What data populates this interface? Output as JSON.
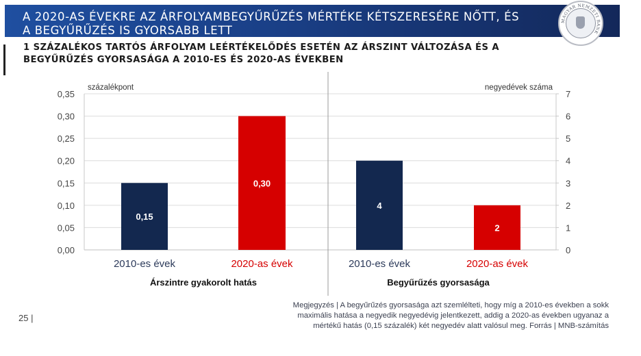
{
  "header": {
    "title_line1": "A 2020-AS ÉVEKRE AZ ÁRFOLYAMBEGYŰRŰZÉS MÉRTÉKE KÉTSZERESÉRE NŐTT, ÉS",
    "title_line2": "A BEGYŰRŰZÉS IS GYORSABB LETT",
    "logo_text": "MAGYAR NEMZETI BANK",
    "brand_color": "#1a3f86"
  },
  "subtitle": {
    "line1": "1 SZÁZALÉKOS TARTÓS ÁRFOLYAM LEÉRTÉKELŐDÉS ESETÉN AZ ÁRSZINT VÁLTOZÁSA ÉS A",
    "line2": "BEGYŰRŰZÉS GYORSASÁGA A 2010-ES ÉS 2020-AS ÉVEKBEN"
  },
  "chart_data": [
    {
      "type": "bar",
      "panel": "left",
      "group_label": "Árszintre gyakorolt hatás",
      "ylabel": "százalékpont",
      "ylim": [
        0,
        0.35
      ],
      "yticks": [
        "0,00",
        "0,05",
        "0,10",
        "0,15",
        "0,20",
        "0,25",
        "0,30",
        "0,35"
      ],
      "categories": [
        "2010-es évek",
        "2020-as évek"
      ],
      "values": [
        0.15,
        0.3
      ],
      "data_labels": [
        "0,15",
        "0,30"
      ],
      "colors": [
        "#13284f",
        "#d60000"
      ],
      "grid": true
    },
    {
      "type": "bar",
      "panel": "right",
      "group_label": "Begyűrűzés gyorsasága",
      "ylabel": "negyedévek száma",
      "ylim": [
        0,
        7
      ],
      "yticks": [
        "0",
        "1",
        "2",
        "3",
        "4",
        "5",
        "6",
        "7"
      ],
      "categories": [
        "2010-es évek",
        "2020-as évek"
      ],
      "values": [
        4,
        2
      ],
      "data_labels": [
        "4",
        "2"
      ],
      "colors": [
        "#13284f",
        "#d60000"
      ],
      "grid": true
    }
  ],
  "footer": {
    "note_line1": "Megjegyzés | A begyűrűzés gyorsasága azt szemlélteti, hogy míg a 2010-es években a sokk",
    "note_line2": "maximális hatása a negyedik negyedévig jelentkezett, addig a 2020-as években ugyanaz a",
    "note_line3": "mértékű hatás (0,15 százalék) két negyedév alatt valósul meg. Forrás | MNB-számítás",
    "page_number": "25 |"
  }
}
